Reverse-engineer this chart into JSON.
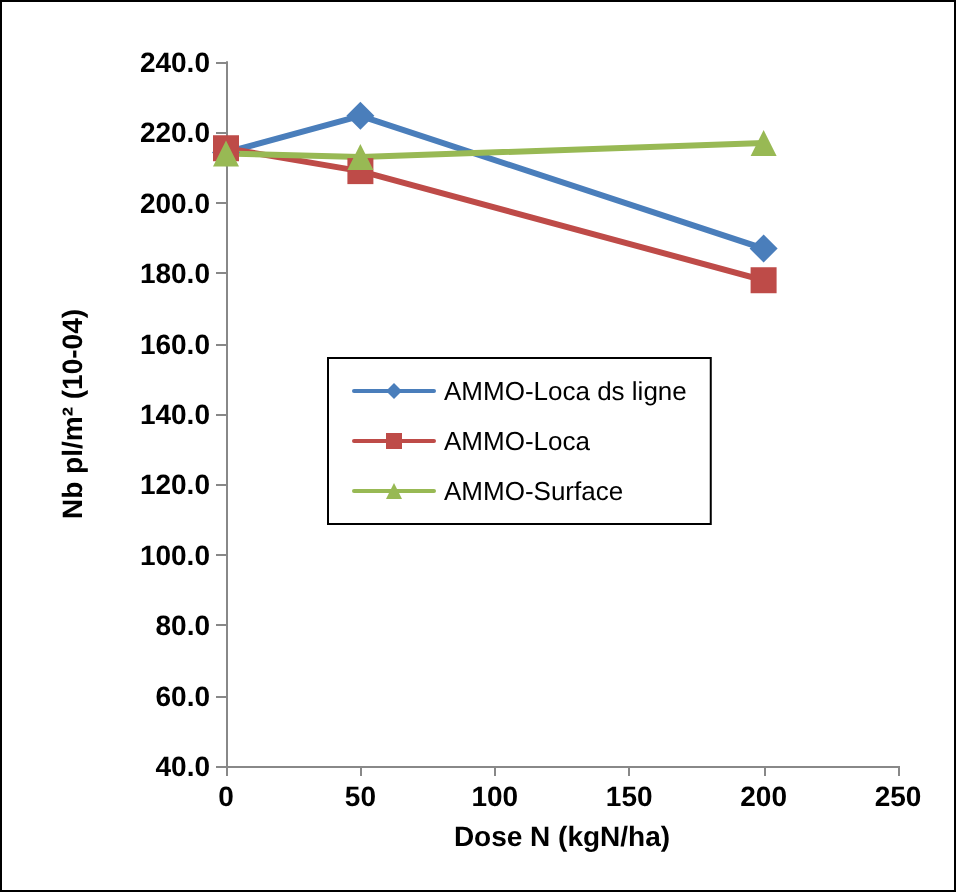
{
  "chart_data": {
    "type": "line",
    "xlabel": "Dose N (kgN/ha)",
    "ylabel": "Nb pl/m² (10-04)",
    "x": [
      0,
      50,
      200
    ],
    "series": [
      {
        "name": "AMMO-Loca ds ligne",
        "color": "#4a7ebb",
        "marker": "diamond",
        "values": [
          214.3,
          224.7,
          187
        ]
      },
      {
        "name": "AMMO-Loca",
        "color": "#be4b48",
        "marker": "square",
        "values": [
          215.5,
          209,
          178
        ]
      },
      {
        "name": "AMMO-Surface",
        "color": "#98b954",
        "marker": "triangle",
        "values": [
          214,
          213,
          217
        ]
      }
    ],
    "xlim": [
      0,
      250
    ],
    "xticks": [
      0,
      50,
      100,
      150,
      200,
      250
    ],
    "ylim": [
      40,
      240
    ],
    "yticks": [
      {
        "value": 40,
        "label": "40.0"
      },
      {
        "value": 60,
        "label": "60.0"
      },
      {
        "value": 80,
        "label": "80.0"
      },
      {
        "value": 100,
        "label": "100.0"
      },
      {
        "value": 120,
        "label": "120.0"
      },
      {
        "value": 140,
        "label": "140.0"
      },
      {
        "value": 160,
        "label": "160.0"
      },
      {
        "value": 180,
        "label": "180.0"
      },
      {
        "value": 200,
        "label": "200.0"
      },
      {
        "value": 220,
        "label": "220.0"
      },
      {
        "value": 240,
        "label": "240.0"
      }
    ],
    "grid": false,
    "legend": "center"
  }
}
